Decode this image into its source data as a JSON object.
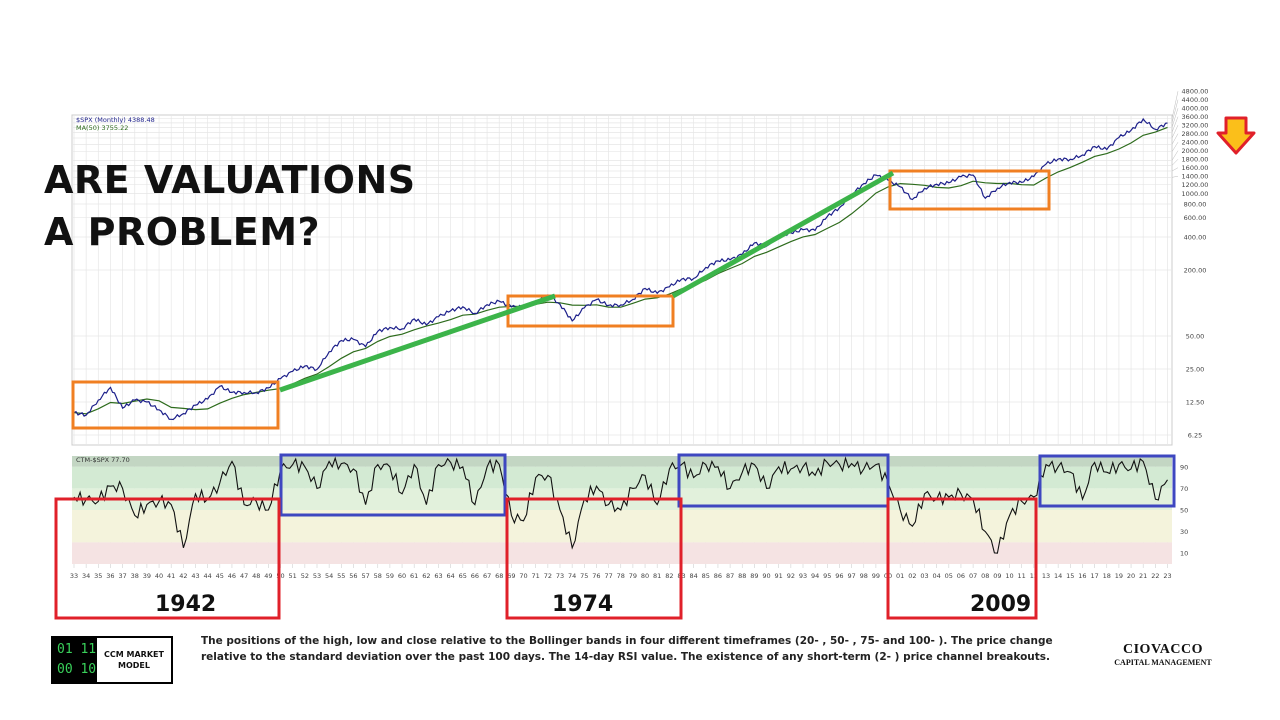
{
  "title_lines": [
    "ARE VALUATIONS",
    "A PROBLEM?"
  ],
  "colors": {
    "price": "#1c1f8a",
    "ma": "#2d6b1c",
    "orange_box": "#f07f22",
    "green_line": "#3cb44a",
    "red_box": "#e0202a",
    "blue_box": "#3e47c0",
    "arrow_fill": "#fbbf1a",
    "arrow_stroke": "#e0202a"
  },
  "indicator_arrow": "down-arrow-icon",
  "chart_data": [
    {
      "type": "line",
      "scale": "log",
      "legend": [
        "$SPX (Monthly) 4388.48",
        "MA(50) 3755.22"
      ],
      "legend_placement": "top-left",
      "grid": true,
      "y_ticks": [
        "6.25",
        "12.50",
        "25.00",
        "50.00",
        "200.00",
        "400.00",
        "600.00",
        "800.00",
        "1000.00",
        "1200.00",
        "1400.00",
        "1600.00",
        "1800.00",
        "2000.00",
        "2400.00",
        "2800.00",
        "3200.00",
        "3600.00",
        "4000.00",
        "4400.00",
        "4800.00"
      ],
      "x_start_year": 1933,
      "x_end_year": 2023,
      "series": [
        {
          "name": "$SPX (Monthly)",
          "values": [
            10,
            9.5,
            13,
            17,
            11,
            13,
            12.5,
            10.6,
            8.7,
            9.8,
            11.7,
            13.3,
            17.4,
            15.3,
            15.3,
            15.2,
            16.8,
            20.4,
            23.8,
            26.6,
            24.8,
            35.9,
            45.5,
            46.7,
            39.9,
            55.2,
            59.9,
            58.1,
            71.6,
            63.1,
            75,
            84.8,
            92.4,
            80.3,
            96.5,
            103.9,
            92.1,
            92.2,
            102,
            118,
            97.6,
            68.6,
            90.2,
            107.5,
            95.1,
            96.1,
            107.9,
            135.8,
            122.6,
            140.6,
            164.9,
            167.2,
            211.3,
            242.2,
            247.1,
            277.7,
            353.4,
            330.2,
            417.1,
            435.7,
            466.5,
            459.3,
            615.9,
            740.7,
            970.4,
            1229,
            1469,
            1320,
            1148,
            880,
            1112,
            1212,
            1248,
            1418,
            1468,
            903,
            1115,
            1258,
            1258,
            1426,
            1848,
            2059,
            2044,
            2239,
            2674,
            2507,
            3231,
            3756,
            4766,
            3840,
            4388
          ]
        },
        {
          "name": "MA(50)",
          "last_value": 3755.22
        }
      ]
    },
    {
      "type": "line",
      "legend": [
        "CTM-$SPX 77.70"
      ],
      "y_ticks": [
        "90",
        "70",
        "50",
        "30",
        "10"
      ],
      "ylim": [
        0,
        100
      ],
      "x_ticks": [
        "33",
        "34",
        "35",
        "36",
        "37",
        "38",
        "39",
        "40",
        "41",
        "42",
        "43",
        "44",
        "45",
        "46",
        "47",
        "48",
        "49",
        "50",
        "51",
        "52",
        "53",
        "54",
        "55",
        "56",
        "57",
        "58",
        "59",
        "60",
        "61",
        "62",
        "63",
        "64",
        "65",
        "66",
        "67",
        "68",
        "69",
        "70",
        "71",
        "72",
        "73",
        "74",
        "75",
        "76",
        "77",
        "78",
        "79",
        "80",
        "81",
        "82",
        "83",
        "84",
        "85",
        "86",
        "87",
        "88",
        "89",
        "90",
        "91",
        "92",
        "93",
        "94",
        "95",
        "96",
        "97",
        "98",
        "99",
        "00",
        "01",
        "02",
        "03",
        "04",
        "05",
        "06",
        "07",
        "08",
        "09",
        "10",
        "11",
        "12",
        "13",
        "14",
        "15",
        "16",
        "17",
        "18",
        "19",
        "20",
        "21",
        "22",
        "23"
      ],
      "series": [
        {
          "name": "CTM-$SPX",
          "values": [
            62,
            60,
            58,
            72,
            70,
            45,
            55,
            58,
            55,
            15,
            65,
            60,
            75,
            95,
            55,
            58,
            50,
            88,
            92,
            90,
            70,
            95,
            93,
            88,
            55,
            92,
            90,
            65,
            92,
            55,
            92,
            94,
            90,
            55,
            90,
            92,
            45,
            40,
            80,
            82,
            50,
            15,
            60,
            72,
            55,
            50,
            70,
            82,
            55,
            88,
            92,
            80,
            92,
            90,
            70,
            85,
            92,
            70,
            90,
            88,
            90,
            82,
            94,
            92,
            93,
            88,
            92,
            75,
            50,
            35,
            65,
            60,
            62,
            65,
            60,
            30,
            10,
            45,
            58,
            62,
            92,
            90,
            85,
            60,
            94,
            85,
            92,
            88,
            95,
            60,
            78
          ]
        }
      ]
    }
  ],
  "annotations": {
    "orange_boxes": [
      [
        1933,
        1950,
        "sideways"
      ],
      [
        1969,
        1983,
        "sideways"
      ],
      [
        2000,
        2013,
        "sideways"
      ]
    ],
    "green_lines": [
      [
        1950,
        1972
      ],
      [
        1983,
        2000
      ]
    ],
    "red_boxes": [
      {
        "label": "1942"
      },
      {
        "label": "1974"
      },
      {
        "label": "2009"
      }
    ],
    "blue_boxes": 3
  },
  "footer": {
    "logo_bits": [
      "01",
      "11",
      "00",
      "10"
    ],
    "logo_text": [
      "CCM MARKET",
      "MODEL"
    ],
    "description": "The positions of the high, low and close relative to the Bollinger bands in four different timeframes (20- , 50- , 75- and 100- ). The price change relative to the standard deviation over the past 100 days. The 14-day RSI value. The existence of any short-term (2- ) price channel breakouts.",
    "brand_name": "CIOVACCO",
    "brand_sub": "CAPITAL MANAGEMENT"
  }
}
